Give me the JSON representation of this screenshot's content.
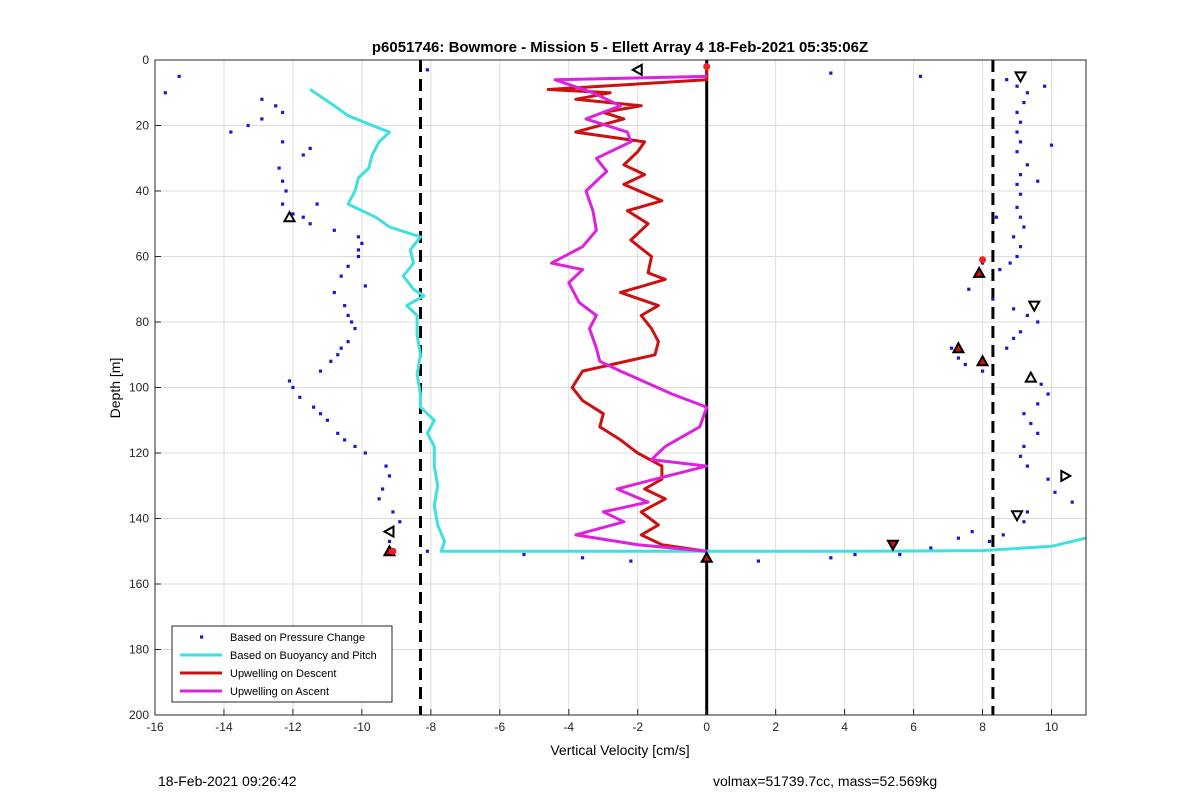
{
  "footer": {
    "timestamp": "18-Feb-2021 09:26:42",
    "stats": "volmax=51739.7cc, mass=52.569kg"
  },
  "chart_data": {
    "type": "line",
    "title": "p6051746: Bowmore - Mission 5 - Ellett Array 4 18-Feb-2021 05:35:06Z",
    "xlabel": "Vertical Velocity [cm/s]",
    "ylabel": "Depth [m]",
    "xlim": [
      -16,
      11
    ],
    "ylim": [
      0,
      200
    ],
    "y_reversed": true,
    "grid": true,
    "xticks": [
      -16,
      -14,
      -12,
      -10,
      -8,
      -6,
      -4,
      -2,
      0,
      2,
      4,
      6,
      8,
      10
    ],
    "yticks": [
      0,
      20,
      40,
      60,
      80,
      100,
      120,
      140,
      160,
      180,
      200
    ],
    "legend_location": "bottom-left",
    "reference_lines": [
      {
        "x": -8.3,
        "style": "dashed",
        "color": "#000000"
      },
      {
        "x": 8.3,
        "style": "dashed",
        "color": "#000000"
      },
      {
        "x": 0,
        "style": "solid",
        "color": "#000000"
      }
    ],
    "series": [
      {
        "name": "Based on Pressure Change",
        "style": "dots",
        "color": "#1a1acc",
        "points": [
          [
            -15.3,
            5
          ],
          [
            -15.7,
            10
          ],
          [
            -12.9,
            12
          ],
          [
            -12.5,
            14
          ],
          [
            -12.3,
            16
          ],
          [
            -12.9,
            18
          ],
          [
            -13.3,
            20
          ],
          [
            -13.8,
            22
          ],
          [
            -12.3,
            25
          ],
          [
            -11.5,
            27
          ],
          [
            -11.7,
            29
          ],
          [
            -12.4,
            33
          ],
          [
            -12.3,
            37
          ],
          [
            -12.2,
            40
          ],
          [
            -12.3,
            44
          ],
          [
            -11.3,
            44
          ],
          [
            -12.0,
            47
          ],
          [
            -11.7,
            48
          ],
          [
            -11.5,
            50
          ],
          [
            -10.8,
            52
          ],
          [
            -10.1,
            54
          ],
          [
            -10.0,
            56
          ],
          [
            -10.1,
            58
          ],
          [
            -10.1,
            60
          ],
          [
            -10.4,
            63
          ],
          [
            -10.6,
            66
          ],
          [
            -9.9,
            69
          ],
          [
            -10.8,
            71
          ],
          [
            -10.5,
            75
          ],
          [
            -10.4,
            78
          ],
          [
            -10.3,
            80
          ],
          [
            -10.2,
            82
          ],
          [
            -10.4,
            86
          ],
          [
            -10.6,
            88
          ],
          [
            -10.7,
            90
          ],
          [
            -10.9,
            92
          ],
          [
            -11.2,
            95
          ],
          [
            -12.1,
            98
          ],
          [
            -12.0,
            100
          ],
          [
            -11.8,
            103
          ],
          [
            -11.4,
            106
          ],
          [
            -11.2,
            108
          ],
          [
            -11.0,
            110
          ],
          [
            -10.7,
            114
          ],
          [
            -10.5,
            116
          ],
          [
            -10.2,
            118
          ],
          [
            -9.9,
            120
          ],
          [
            -9.3,
            124
          ],
          [
            -9.2,
            127
          ],
          [
            -9.4,
            131
          ],
          [
            -9.5,
            134
          ],
          [
            -9.1,
            138
          ],
          [
            -8.9,
            141
          ],
          [
            -9.2,
            147
          ],
          [
            -9.1,
            150
          ],
          [
            -8.1,
            150
          ],
          [
            -5.3,
            151
          ],
          [
            -3.6,
            152
          ],
          [
            -2.2,
            153
          ],
          [
            -8.1,
            3
          ],
          [
            1.5,
            153
          ],
          [
            3.6,
            4
          ],
          [
            6.2,
            5
          ],
          [
            3.6,
            152
          ],
          [
            4.3,
            151
          ],
          [
            5.6,
            151
          ],
          [
            6.5,
            149
          ],
          [
            7.3,
            146
          ],
          [
            7.7,
            144
          ],
          [
            8.7,
            6
          ],
          [
            9.0,
            8
          ],
          [
            9.3,
            10
          ],
          [
            9.2,
            13
          ],
          [
            9.0,
            16
          ],
          [
            9.1,
            19
          ],
          [
            9.0,
            22
          ],
          [
            9.1,
            25
          ],
          [
            9.0,
            28
          ],
          [
            9.3,
            32
          ],
          [
            9.1,
            35
          ],
          [
            9.0,
            38
          ],
          [
            9.1,
            41
          ],
          [
            9.0,
            45
          ],
          [
            9.1,
            48
          ],
          [
            9.2,
            51
          ],
          [
            8.9,
            54
          ],
          [
            9.1,
            57
          ],
          [
            9.0,
            60
          ],
          [
            8.8,
            62
          ],
          [
            8.5,
            64
          ],
          [
            8.0,
            62
          ],
          [
            7.8,
            66
          ],
          [
            7.6,
            70
          ],
          [
            8.3,
            73
          ],
          [
            8.9,
            76
          ],
          [
            9.3,
            78
          ],
          [
            9.6,
            80
          ],
          [
            9.1,
            83
          ],
          [
            8.9,
            85
          ],
          [
            8.7,
            88
          ],
          [
            7.1,
            88
          ],
          [
            7.3,
            91
          ],
          [
            7.5,
            93
          ],
          [
            8.0,
            95
          ],
          [
            9.4,
            96
          ],
          [
            9.7,
            99
          ],
          [
            9.9,
            102
          ],
          [
            9.6,
            105
          ],
          [
            9.2,
            108
          ],
          [
            9.4,
            111
          ],
          [
            9.6,
            114
          ],
          [
            9.2,
            118
          ],
          [
            9.1,
            121
          ],
          [
            9.3,
            124
          ],
          [
            9.9,
            128
          ],
          [
            10.1,
            132
          ],
          [
            10.6,
            135
          ],
          [
            9.3,
            138
          ],
          [
            9.2,
            141
          ],
          [
            8.6,
            145
          ],
          [
            8.2,
            147
          ],
          [
            9.8,
            8
          ],
          [
            10.0,
            26
          ],
          [
            9.6,
            37
          ],
          [
            8.4,
            48
          ]
        ]
      },
      {
        "name": "Based on Buoyancy and Pitch",
        "style": "line",
        "color": "#40e0e0",
        "points": [
          [
            -11.5,
            9
          ],
          [
            -10.8,
            14
          ],
          [
            -10.4,
            17
          ],
          [
            -9.7,
            20
          ],
          [
            -9.2,
            22
          ],
          [
            -9.5,
            25
          ],
          [
            -9.7,
            29
          ],
          [
            -9.8,
            33
          ],
          [
            -10.1,
            36
          ],
          [
            -10.2,
            40
          ],
          [
            -10.4,
            44
          ],
          [
            -9.6,
            48
          ],
          [
            -9.2,
            51
          ],
          [
            -8.3,
            54
          ],
          [
            -8.6,
            58
          ],
          [
            -8.5,
            62
          ],
          [
            -8.8,
            66
          ],
          [
            -8.5,
            70
          ],
          [
            -8.2,
            72
          ],
          [
            -8.7,
            75
          ],
          [
            -8.4,
            78
          ],
          [
            -8.4,
            84
          ],
          [
            -8.3,
            90
          ],
          [
            -8.4,
            96
          ],
          [
            -8.3,
            102
          ],
          [
            -8.3,
            106
          ],
          [
            -7.9,
            110
          ],
          [
            -8.1,
            114
          ],
          [
            -7.9,
            118
          ],
          [
            -7.9,
            124
          ],
          [
            -7.8,
            130
          ],
          [
            -7.9,
            136
          ],
          [
            -7.8,
            142
          ],
          [
            -7.6,
            147
          ],
          [
            -7.7,
            150
          ],
          [
            -4.0,
            150
          ],
          [
            0.0,
            150
          ],
          [
            4.0,
            150
          ],
          [
            8.0,
            149.8
          ],
          [
            10.0,
            148.5
          ],
          [
            11.0,
            146
          ]
        ]
      },
      {
        "name": "Upwelling on Descent",
        "style": "line",
        "color": "#cc1111",
        "points": [
          [
            0.0,
            2
          ],
          [
            0.0,
            6
          ],
          [
            -4.6,
            9
          ],
          [
            -2.8,
            10
          ],
          [
            -3.8,
            12
          ],
          [
            -1.9,
            14
          ],
          [
            -3.0,
            16
          ],
          [
            -2.4,
            18
          ],
          [
            -3.8,
            22
          ],
          [
            -1.8,
            25
          ],
          [
            -2.0,
            28
          ],
          [
            -2.4,
            32
          ],
          [
            -1.8,
            35
          ],
          [
            -2.4,
            38
          ],
          [
            -1.3,
            43
          ],
          [
            -2.3,
            46
          ],
          [
            -1.7,
            50
          ],
          [
            -2.2,
            55
          ],
          [
            -1.6,
            60
          ],
          [
            -1.7,
            65
          ],
          [
            -1.2,
            67
          ],
          [
            -2.5,
            71
          ],
          [
            -1.4,
            75
          ],
          [
            -1.9,
            78
          ],
          [
            -1.6,
            82
          ],
          [
            -1.4,
            86
          ],
          [
            -1.5,
            90
          ],
          [
            -3.6,
            95
          ],
          [
            -3.9,
            100
          ],
          [
            -3.6,
            104
          ],
          [
            -3.0,
            108
          ],
          [
            -3.1,
            112
          ],
          [
            -2.5,
            116
          ],
          [
            -2.0,
            120
          ],
          [
            -1.3,
            124
          ],
          [
            -1.3,
            128
          ],
          [
            -1.8,
            131
          ],
          [
            -1.2,
            134
          ],
          [
            -1.9,
            138
          ],
          [
            -1.4,
            142
          ],
          [
            -1.9,
            145
          ],
          [
            -1.3,
            148
          ],
          [
            0.0,
            150
          ]
        ]
      },
      {
        "name": "Upwelling on Ascent",
        "style": "line",
        "color": "#dd22dd",
        "points": [
          [
            0.0,
            150
          ],
          [
            -2.0,
            148
          ],
          [
            -3.8,
            145
          ],
          [
            -2.4,
            141
          ],
          [
            -3.0,
            138
          ],
          [
            -1.7,
            135
          ],
          [
            -2.6,
            131
          ],
          [
            -1.5,
            128
          ],
          [
            0.0,
            124
          ],
          [
            -1.6,
            122
          ],
          [
            -1.2,
            118
          ],
          [
            -0.2,
            112
          ],
          [
            0.0,
            106
          ],
          [
            -1.0,
            102
          ],
          [
            -2.5,
            95
          ],
          [
            -3.1,
            92
          ],
          [
            -3.2,
            88
          ],
          [
            -3.4,
            82
          ],
          [
            -3.2,
            78
          ],
          [
            -3.7,
            74
          ],
          [
            -4.0,
            68
          ],
          [
            -3.6,
            64
          ],
          [
            -4.5,
            62
          ],
          [
            -3.6,
            57
          ],
          [
            -3.2,
            52
          ],
          [
            -3.3,
            46
          ],
          [
            -3.5,
            40
          ],
          [
            -2.9,
            34
          ],
          [
            -3.2,
            30
          ],
          [
            -2.2,
            25
          ],
          [
            -2.3,
            22
          ],
          [
            -3.5,
            18
          ],
          [
            -2.5,
            14
          ],
          [
            -3.3,
            10
          ],
          [
            -4.4,
            6
          ],
          [
            0.0,
            5
          ]
        ]
      }
    ],
    "markers": [
      {
        "shape": "triangle-left",
        "fill": "#ffffff",
        "x": -2.0,
        "y": 3
      },
      {
        "shape": "triangle-up",
        "fill": "#ffffff",
        "x": -12.1,
        "y": 48
      },
      {
        "shape": "triangle-left",
        "fill": "#ffffff",
        "x": -9.2,
        "y": 144
      },
      {
        "shape": "triangle-up",
        "fill": "#cc1111",
        "x": -9.2,
        "y": 150
      },
      {
        "shape": "triangle-up",
        "fill": "#cc1111",
        "x": 0.0,
        "y": 152
      },
      {
        "shape": "triangle-down",
        "fill": "#cc1111",
        "x": 5.4,
        "y": 148
      },
      {
        "shape": "triangle-down",
        "fill": "#ffffff",
        "x": 9.1,
        "y": 5
      },
      {
        "shape": "triangle-up",
        "fill": "#cc1111",
        "x": 7.9,
        "y": 65
      },
      {
        "shape": "triangle-down",
        "fill": "#ffffff",
        "x": 9.5,
        "y": 75
      },
      {
        "shape": "triangle-up",
        "fill": "#cc1111",
        "x": 7.3,
        "y": 88
      },
      {
        "shape": "triangle-up",
        "fill": "#cc1111",
        "x": 8.0,
        "y": 92
      },
      {
        "shape": "triangle-up",
        "fill": "#ffffff",
        "x": 9.4,
        "y": 97
      },
      {
        "shape": "triangle-right",
        "fill": "#ffffff",
        "x": 10.4,
        "y": 127
      },
      {
        "shape": "triangle-down",
        "fill": "#ffffff",
        "x": 9.0,
        "y": 139
      },
      {
        "shape": "dot",
        "fill": "#ee2222",
        "x": 0.0,
        "y": 2
      },
      {
        "shape": "dot",
        "fill": "#ee2222",
        "x": 8.0,
        "y": 61
      },
      {
        "shape": "dot",
        "fill": "#ee2222",
        "x": -9.1,
        "y": 150
      }
    ]
  }
}
